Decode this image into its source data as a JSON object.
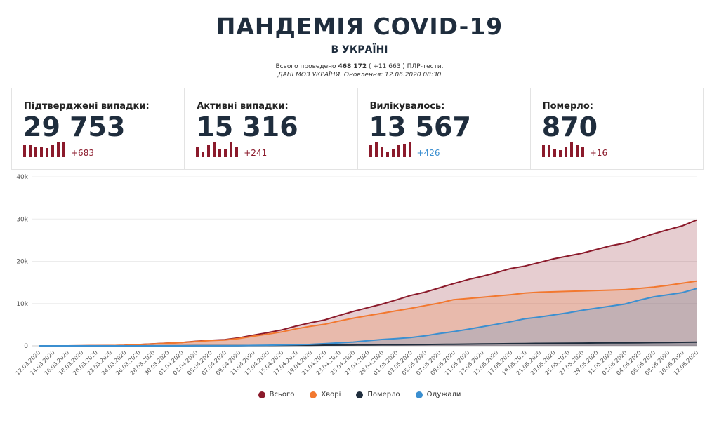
{
  "header": {
    "title": "ПАНДЕМІЯ COVID-19",
    "subtitle": "В УКРАЇНІ",
    "tests_prefix": "Всього проведено ",
    "tests_total": "468 172",
    "tests_suffix": " ( +11 663 ) ПЛР-тести.",
    "source": "ДАНІ МОЗ УКРАЇНИ. Оновлення: 12.06.2020 08:30"
  },
  "cards": [
    {
      "label": "Підтверджені випадки:",
      "value": "29 753",
      "delta": "+683",
      "delta_color": "#8b1a2b",
      "spark": [
        0.8,
        0.75,
        0.7,
        0.65,
        0.6,
        0.8,
        1.0,
        1.0
      ]
    },
    {
      "label": "Активні випадки:",
      "value": "15 316",
      "delta": "+241",
      "delta_color": "#8b1a2b",
      "spark": [
        0.7,
        0.3,
        0.8,
        1.0,
        0.55,
        0.5,
        0.95,
        0.65
      ]
    },
    {
      "label": "Вилікувалось:",
      "value": "13 567",
      "delta": "+426",
      "delta_color": "#3b8fd0",
      "spark": [
        0.75,
        1.0,
        0.7,
        0.3,
        0.55,
        0.75,
        0.85,
        1.0
      ]
    },
    {
      "label": "Померло:",
      "value": "870",
      "delta": "+16",
      "delta_color": "#8b1a2b",
      "spark": [
        0.75,
        0.75,
        0.55,
        0.45,
        0.7,
        1.0,
        0.8,
        0.65
      ]
    }
  ],
  "chart_data": {
    "type": "area",
    "x_labels": [
      "12.03.2020",
      "14.03.2020",
      "16.03.2020",
      "18.03.2020",
      "20.03.2020",
      "22.03.2020",
      "24.03.2020",
      "26.03.2020",
      "28.03.2020",
      "30.03.2020",
      "01.04.2020",
      "03.04.2020",
      "05.04.2020",
      "07.04.2020",
      "09.04.2020",
      "11.04.2020",
      "13.04.2020",
      "15.04.2020",
      "17.04.2020",
      "19.04.2020",
      "21.04.2020",
      "23.04.2020",
      "25.04.2020",
      "27.04.2020",
      "29.04.2020",
      "01.05.2020",
      "03.05.2020",
      "05.05.2020",
      "07.05.2020",
      "09.05.2020",
      "11.05.2020",
      "13.05.2020",
      "15.05.2020",
      "17.05.2020",
      "19.05.2020",
      "21.05.2020",
      "23.05.2020",
      "25.05.2020",
      "27.05.2020",
      "29.05.2020",
      "31.05.2020",
      "02.06.2020",
      "04.06.2020",
      "06.06.2020",
      "08.06.2020",
      "10.06.2020",
      "12.06.2020"
    ],
    "y_ticks": [
      "0",
      "10k",
      "20k",
      "30k",
      "40k"
    ],
    "ylim": [
      0,
      40000
    ],
    "grid": true,
    "legend_position": "bottom",
    "series": [
      {
        "name": "Всього",
        "color": "#8b1a2b",
        "fill": "rgba(139,26,43,0.22)",
        "values": [
          1,
          3,
          7,
          16,
          47,
          73,
          113,
          310,
          475,
          645,
          804,
          1072,
          1319,
          1462,
          1892,
          2511,
          3102,
          3764,
          4662,
          5449,
          6125,
          7170,
          8125,
          9009,
          9866,
          10861,
          11913,
          12697,
          13691,
          14710,
          15648,
          16425,
          17330,
          18291,
          18876,
          19706,
          20580,
          21245,
          21905,
          22811,
          23672,
          24340,
          25411,
          26514,
          27462,
          28381,
          29753
        ]
      },
      {
        "name": "Хворі",
        "color": "#f2782f",
        "fill": "rgba(242,120,47,0.22)",
        "values": [
          1,
          3,
          7,
          16,
          46,
          72,
          108,
          300,
          460,
          620,
          770,
          1020,
          1240,
          1360,
          1730,
          2260,
          2760,
          3290,
          4020,
          4620,
          5100,
          5860,
          6540,
          7130,
          7700,
          8290,
          8870,
          9500,
          10100,
          10900,
          11200,
          11500,
          11800,
          12100,
          12500,
          12700,
          12800,
          12900,
          13000,
          13100,
          13200,
          13300,
          13600,
          13900,
          14300,
          14800,
          15316
        ]
      },
      {
        "name": "Померло",
        "color": "#1f2d3d",
        "fill": "rgba(31,45,61,0.22)",
        "values": [
          0,
          0,
          1,
          1,
          2,
          2,
          3,
          5,
          9,
          13,
          20,
          27,
          37,
          45,
          52,
          69,
          83,
          98,
          121,
          141,
          161,
          187,
          215,
          239,
          261,
          272,
          288,
          316,
          350,
          376,
          410,
          446,
          484,
          522,
          548,
          588,
          605,
          623,
          644,
          674,
          697,
          714,
          735,
          760,
          800,
          830,
          870
        ]
      },
      {
        "name": "Одужали",
        "color": "#3b8fd0",
        "fill": "rgba(59,143,208,0.22)",
        "values": [
          0,
          0,
          0,
          0,
          0,
          0,
          1,
          1,
          2,
          4,
          6,
          9,
          13,
          20,
          40,
          100,
          150,
          200,
          270,
          350,
          510,
          710,
          900,
          1200,
          1500,
          1700,
          1950,
          2350,
          2900,
          3350,
          3900,
          4500,
          5100,
          5700,
          6400,
          6800,
          7300,
          7800,
          8400,
          8900,
          9400,
          9900,
          10800,
          11600,
          12100,
          12600,
          13567
        ]
      }
    ]
  }
}
